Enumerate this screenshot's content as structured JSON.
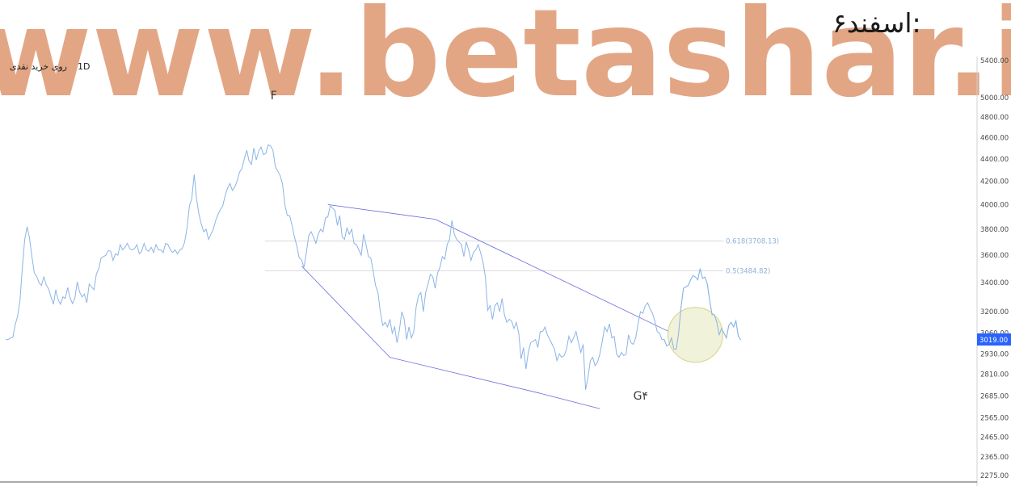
{
  "header": {
    "date_label": "۶اسفند:",
    "watermark": "www.betashar.ir"
  },
  "legend": {
    "symbol": "روی خرید نقدی",
    "interval": "1D"
  },
  "colors": {
    "price_line": "#8cb4e6",
    "trend_lines": "#6a6ae0",
    "fib_line": "#d9d9d9",
    "fib_text": "#8fb1d6",
    "price_tag": "#2962ff",
    "highlight_fill": "#eef0d4",
    "highlight_stroke": "#d6d48a",
    "watermark": "#e3a685"
  },
  "chart_data": {
    "type": "line",
    "title": "",
    "xlabel": "",
    "ylabel": "",
    "y_scale": "log",
    "ylim": [
      2245,
      5600
    ],
    "y_ticks": [
      "5400.00",
      "5000.00",
      "4800.00",
      "4600.00",
      "4400.00",
      "4200.00",
      "4000.00",
      "3800.00",
      "3600.00",
      "3400.00",
      "3200.00",
      "3060.00",
      "2930.00",
      "2810.00",
      "2685.00",
      "2565.00",
      "2465.00",
      "2365.00",
      "2275.00"
    ],
    "last_price_label": "3019.00",
    "x_start": 0,
    "x_step": 3,
    "series": [
      {
        "values": [
          3020,
          3019,
          3030,
          3035,
          3115,
          3170,
          3275,
          3510,
          3720,
          3820,
          3730,
          3590,
          3470,
          3445,
          3400,
          3380,
          3440,
          3385,
          3355,
          3300,
          3250,
          3350,
          3280,
          3250,
          3300,
          3290,
          3365,
          3295,
          3255,
          3290,
          3405,
          3335,
          3300,
          3320,
          3260,
          3390,
          3370,
          3350,
          3460,
          3500,
          3580,
          3590,
          3600,
          3635,
          3630,
          3560,
          3610,
          3600,
          3680,
          3640,
          3660,
          3690,
          3650,
          3640,
          3650,
          3680,
          3610,
          3630,
          3690,
          3640,
          3630,
          3660,
          3620,
          3680,
          3640,
          3640,
          3620,
          3690,
          3680,
          3640,
          3620,
          3640,
          3610,
          3640,
          3650,
          3700,
          3810,
          3990,
          4050,
          4260,
          4050,
          3920,
          3840,
          3780,
          3800,
          3720,
          3760,
          3800,
          3870,
          3920,
          3960,
          3990,
          4080,
          4140,
          4180,
          4120,
          4150,
          4200,
          4280,
          4310,
          4400,
          4480,
          4380,
          4350,
          4500,
          4390,
          4470,
          4510,
          4440,
          4450,
          4530,
          4520,
          4480,
          4330,
          4290,
          4250,
          4180,
          4000,
          3910,
          3910,
          3830,
          3740,
          3670,
          3580,
          3565,
          3510,
          3620,
          3750,
          3780,
          3740,
          3690,
          3760,
          3800,
          3780,
          3890,
          3900,
          3990,
          3970,
          3950,
          3830,
          3910,
          3740,
          3720,
          3810,
          3760,
          3800,
          3690,
          3680,
          3640,
          3600,
          3760,
          3680,
          3590,
          3580,
          3480,
          3380,
          3330,
          3200,
          3110,
          3130,
          3100,
          3150,
          3060,
          3100,
          3000,
          3080,
          3200,
          3150,
          3020,
          3100,
          3030,
          3070,
          3230,
          3310,
          3330,
          3200,
          3330,
          3390,
          3460,
          3440,
          3360,
          3470,
          3510,
          3590,
          3570,
          3680,
          3720,
          3870,
          3760,
          3720,
          3700,
          3680,
          3590,
          3700,
          3640,
          3560,
          3620,
          3640,
          3680,
          3620,
          3550,
          3440,
          3210,
          3240,
          3150,
          3240,
          3260,
          3200,
          3290,
          3180,
          3130,
          3150,
          3140,
          3090,
          3130,
          3060,
          2900,
          2970,
          2840,
          2940,
          3000,
          3010,
          3020,
          2970,
          3070,
          3070,
          3100,
          3050,
          3020,
          2990,
          2960,
          2890,
          2930,
          2910,
          2920,
          2960,
          3040,
          3000,
          3030,
          3070,
          3000,
          2940,
          2990,
          2720,
          2790,
          2890,
          2910,
          2860,
          2880,
          2930,
          3010,
          3100,
          3070,
          3120,
          3030,
          3040,
          2930,
          2910,
          2940,
          2920,
          2930,
          3050,
          3000,
          2990,
          3030,
          3120,
          3200,
          3190,
          3240,
          3260,
          3220,
          3190,
          3140,
          3070,
          3060,
          3020,
          3020,
          2980,
          2990,
          3030,
          2960,
          2960,
          3060,
          3230,
          3360,
          3370,
          3380,
          3420,
          3450,
          3440,
          3420,
          3500,
          3430,
          3440,
          3390,
          3280,
          3180,
          3180,
          3130,
          3050,
          3090,
          3060,
          3030,
          3110,
          3130,
          3100,
          3140,
          3040,
          3019
        ]
      }
    ],
    "fib_levels": [
      {
        "label": "0.618(3708.13)",
        "value": 3708.13
      },
      {
        "label": "0.5(3484.82)",
        "value": 3484.82
      }
    ],
    "trend_lines": [
      {
        "from": [
          135,
          4000
        ],
        "to": [
          180,
          3880
        ]
      },
      {
        "from": [
          180,
          3880
        ],
        "to": [
          278,
          3070
        ]
      },
      {
        "from": [
          124,
          3520
        ],
        "to": [
          161,
          2910
        ]
      },
      {
        "from": [
          161,
          2910
        ],
        "to": [
          224,
          2700
        ]
      },
      {
        "from": [
          224,
          2700
        ],
        "to": [
          249,
          2615
        ]
      }
    ],
    "annotations": [
      {
        "text": "F",
        "x": 111,
        "y": 4980
      },
      {
        "text": "G۴",
        "x": 263,
        "y": 2665
      }
    ],
    "highlight": {
      "x": 289,
      "y": 3050
    }
  }
}
